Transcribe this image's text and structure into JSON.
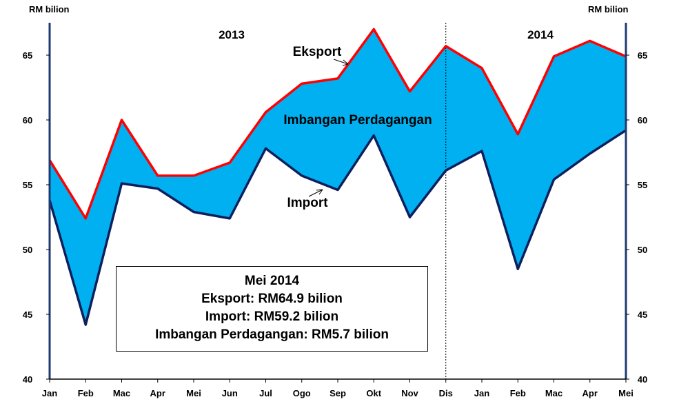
{
  "chart_data": {
    "type": "area",
    "y_unit_left": "RM bilion",
    "y_unit_right": "RM bilion",
    "categories": [
      "Jan",
      "Feb",
      "Mac",
      "Apr",
      "Mei",
      "Jun",
      "Jul",
      "Ogo",
      "Sep",
      "Okt",
      "Nov",
      "Dis",
      "Jan",
      "Feb",
      "Mac",
      "Apr",
      "Mei"
    ],
    "series": [
      {
        "name": "Eksport",
        "color": "#ff0000",
        "values": [
          56.9,
          52.4,
          60.0,
          55.7,
          55.7,
          56.7,
          60.6,
          62.8,
          63.2,
          67.0,
          62.2,
          65.7,
          64.0,
          58.9,
          64.9,
          66.1,
          64.9
        ]
      },
      {
        "name": "Import",
        "color": "#0d1f5c",
        "values": [
          53.8,
          44.2,
          55.1,
          54.7,
          52.9,
          52.4,
          57.8,
          55.7,
          54.6,
          58.8,
          52.5,
          56.1,
          57.6,
          48.5,
          55.4,
          57.4,
          59.2
        ]
      }
    ],
    "fill_label": "Imbangan Perdagangan",
    "fill_color": "#00b0f0",
    "ylim": [
      40,
      67.5
    ],
    "yticks": [
      40,
      45,
      50,
      55,
      60,
      65
    ],
    "year_labels": [
      "2013",
      "2014"
    ],
    "divider_after_category": "Dis",
    "annotations": [
      "Eksport",
      "Import",
      "Imbangan Perdagangan"
    ],
    "grid": false
  },
  "info_box": {
    "title": "Mei 2014",
    "line1": "Eksport: RM64.9 bilion",
    "line2": "Import: RM59.2 bilion",
    "line3": "Imbangan Perdagangan: RM5.7 bilion"
  }
}
